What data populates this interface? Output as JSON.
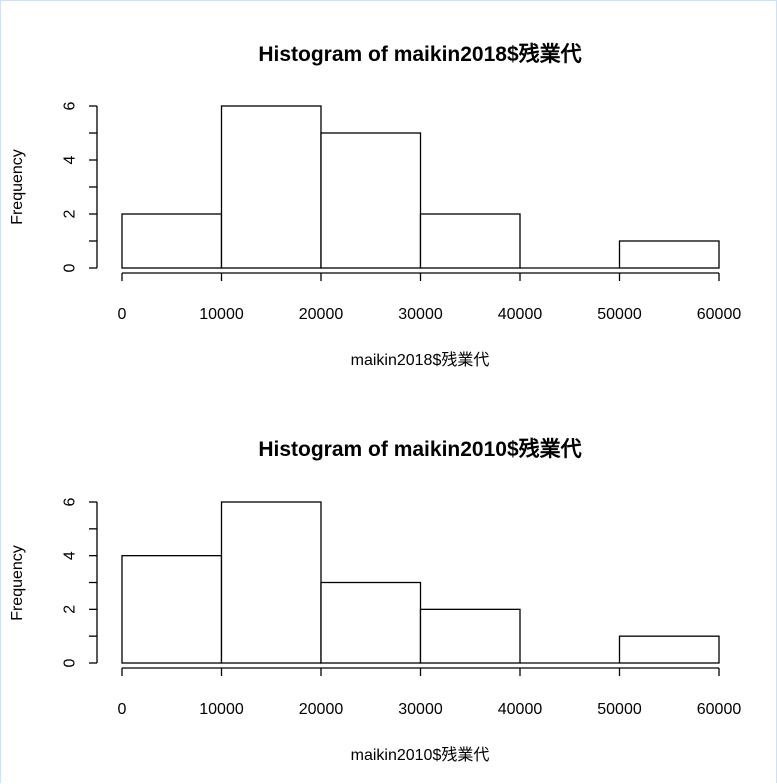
{
  "chart_data": [
    {
      "type": "bar",
      "title": "Histogram of maikin2018$残業代",
      "xlabel": "maikin2018$残業代",
      "ylabel": "Frequency",
      "breaks": [
        0,
        10000,
        20000,
        30000,
        40000,
        50000,
        60000
      ],
      "values": [
        2,
        6,
        5,
        2,
        0,
        1
      ],
      "xticks": [
        0,
        10000,
        20000,
        30000,
        40000,
        50000,
        60000
      ],
      "yticks": [
        0,
        2,
        4,
        6
      ],
      "xlim": [
        0,
        60000
      ],
      "ylim": [
        0,
        6
      ],
      "grid": false
    },
    {
      "type": "bar",
      "title": "Histogram of maikin2010$残業代",
      "xlabel": "maikin2010$残業代",
      "ylabel": "Frequency",
      "breaks": [
        0,
        10000,
        20000,
        30000,
        40000,
        50000,
        60000
      ],
      "values": [
        4,
        6,
        3,
        2,
        0,
        1
      ],
      "xticks": [
        0,
        10000,
        20000,
        30000,
        40000,
        50000,
        60000
      ],
      "yticks": [
        0,
        2,
        4,
        6
      ],
      "xlim": [
        0,
        60000
      ],
      "ylim": [
        0,
        6
      ],
      "grid": false
    }
  ]
}
